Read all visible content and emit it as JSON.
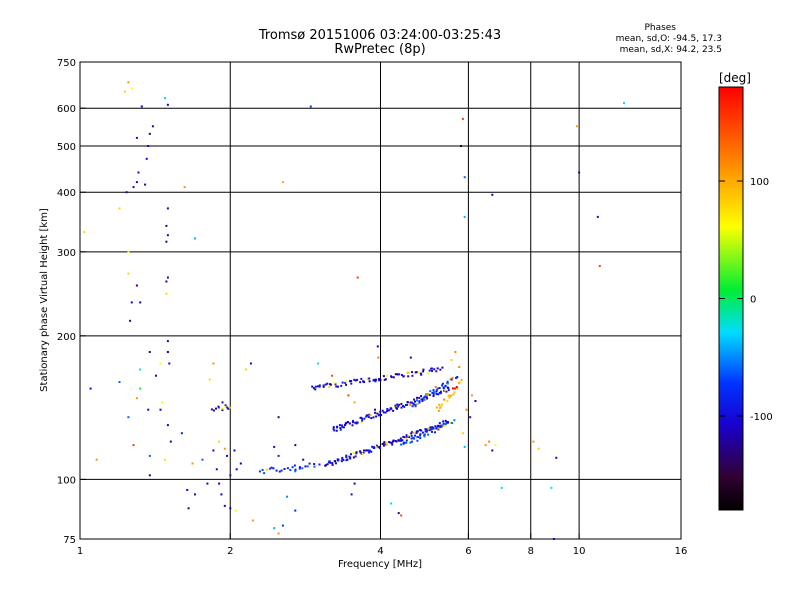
{
  "chart_data": {
    "type": "scatter",
    "title": "Tromsø 20151006 03:24:00-03:25:43",
    "subtitle": "RwPretec (8p)",
    "xlabel": "Frequency [MHz]",
    "ylabel": "Stationary phase Virtual Height [km]",
    "x_scale": "log2",
    "y_scale": "log",
    "xlim": [
      1,
      16
    ],
    "ylim": [
      75,
      750
    ],
    "x_ticks": [
      1,
      2,
      4,
      6,
      8,
      10,
      16
    ],
    "y_ticks": [
      75,
      100,
      200,
      300,
      400,
      500,
      600,
      750
    ],
    "grid": true,
    "colorbar": {
      "title": "[deg]",
      "ticks": [
        100,
        0,
        -100
      ],
      "range": [
        -180,
        180
      ],
      "colormap": "rainbow"
    },
    "annotation": {
      "title": "Phases",
      "line1": "mean, sd,O: -94.5, 17.3",
      "line2": "mean, sd,X:  94.2, 23.5"
    },
    "series": [
      {
        "traces": [
          {
            "from": [
              3.1,
              107
            ],
            "to": [
              5.5,
              132
            ],
            "phase": -100,
            "n": 120
          },
          {
            "from": [
              3.2,
              127
            ],
            "to": [
              5.5,
              155
            ],
            "phase": -100,
            "n": 110
          },
          {
            "from": [
              2.9,
              155
            ],
            "to": [
              5.3,
              170
            ],
            "phase": -105,
            "n": 80
          },
          {
            "from": [
              4.4,
              118
            ],
            "to": [
              5.6,
              132
            ],
            "phase": -70,
            "n": 40
          },
          {
            "from": [
              4.6,
              142
            ],
            "to": [
              5.7,
              165
            ],
            "phase": -70,
            "n": 40
          },
          {
            "from": [
              5.2,
              140
            ],
            "to": [
              5.8,
              160
            ],
            "phase": 95,
            "n": 22
          },
          {
            "from": [
              2.3,
              104
            ],
            "to": [
              3.0,
              107
            ],
            "phase": -80,
            "n": 25
          },
          {
            "from": [
              1.85,
              140
            ],
            "to": [
              2.0,
              142
            ],
            "phase": -105,
            "n": 12
          }
        ],
        "points": [
          [
            1.02,
            330,
            80
          ],
          [
            1.25,
            680,
            110
          ],
          [
            1.27,
            660,
            60
          ],
          [
            1.23,
            650,
            80
          ],
          [
            1.33,
            605,
            -110
          ],
          [
            1.48,
            630,
            -30
          ],
          [
            1.5,
            610,
            -120
          ],
          [
            1.4,
            550,
            -120
          ],
          [
            1.38,
            530,
            -120
          ],
          [
            1.3,
            520,
            -100
          ],
          [
            1.37,
            500,
            -110
          ],
          [
            1.36,
            470,
            -105
          ],
          [
            1.31,
            440,
            -100
          ],
          [
            1.3,
            420,
            -110
          ],
          [
            1.35,
            415,
            -120
          ],
          [
            1.28,
            410,
            -110
          ],
          [
            1.24,
            400,
            -120
          ],
          [
            1.62,
            410,
            110
          ],
          [
            2.55,
            420,
            100
          ],
          [
            1.2,
            370,
            80
          ],
          [
            1.5,
            370,
            -120
          ],
          [
            1.49,
            340,
            -120
          ],
          [
            1.5,
            325,
            -110
          ],
          [
            1.49,
            315,
            -120
          ],
          [
            1.7,
            320,
            -40
          ],
          [
            1.25,
            300,
            60
          ],
          [
            1.5,
            265,
            -110
          ],
          [
            1.49,
            260,
            -120
          ],
          [
            1.25,
            270,
            80
          ],
          [
            1.3,
            255,
            -120
          ],
          [
            1.27,
            235,
            -110
          ],
          [
            1.32,
            235,
            -120
          ],
          [
            1.49,
            245,
            80
          ],
          [
            1.26,
            215,
            -130
          ],
          [
            2.9,
            605,
            -70
          ],
          [
            3.6,
            265,
            150
          ],
          [
            5.85,
            570,
            150
          ],
          [
            5.8,
            500,
            -150
          ],
          [
            5.9,
            430,
            -60
          ],
          [
            6.7,
            395,
            -110
          ],
          [
            5.9,
            355,
            -40
          ],
          [
            9.9,
            550,
            110
          ],
          [
            10.0,
            440,
            -120
          ],
          [
            10.9,
            355,
            -110
          ],
          [
            11,
            280,
            150
          ],
          [
            12.3,
            615,
            -30
          ],
          [
            1.5,
            195,
            -120
          ],
          [
            1.5,
            185,
            -110
          ],
          [
            1.51,
            175,
            -100
          ],
          [
            1.38,
            185,
            -120
          ],
          [
            1.42,
            165,
            -110
          ],
          [
            1.45,
            175,
            60
          ],
          [
            1.32,
            170,
            -20
          ],
          [
            1.32,
            155,
            10
          ],
          [
            1.2,
            160,
            -60
          ],
          [
            1.05,
            155,
            -110
          ],
          [
            1.3,
            148,
            110
          ],
          [
            1.37,
            140,
            -110
          ],
          [
            1.45,
            140,
            -120
          ],
          [
            1.46,
            145,
            60
          ],
          [
            1.25,
            135,
            -60
          ],
          [
            1.5,
            130,
            -110
          ],
          [
            1.52,
            120,
            -120
          ],
          [
            1.6,
            125,
            -80
          ],
          [
            1.28,
            118,
            150
          ],
          [
            1.38,
            112,
            -60
          ],
          [
            1.08,
            110,
            110
          ],
          [
            1.38,
            102,
            -120
          ],
          [
            1.48,
            110,
            70
          ],
          [
            1.68,
            108,
            110
          ],
          [
            1.76,
            110,
            -60
          ],
          [
            1.8,
            98,
            -120
          ],
          [
            1.64,
            95,
            -110
          ],
          [
            1.65,
            87,
            -120
          ],
          [
            1.7,
            93,
            -100
          ],
          [
            1.88,
            105,
            -100
          ],
          [
            1.9,
            98,
            -110
          ],
          [
            1.92,
            93,
            -120
          ],
          [
            1.95,
            88,
            -120
          ],
          [
            2.0,
            87,
            -110
          ],
          [
            2.05,
            86,
            60
          ],
          [
            2.22,
            82,
            110
          ],
          [
            2.45,
            79,
            -40
          ],
          [
            2.5,
            77,
            110
          ],
          [
            2.6,
            92,
            -50
          ],
          [
            2.7,
            86,
            -80
          ],
          [
            2.7,
            104,
            -60
          ],
          [
            2.45,
            117,
            -110
          ],
          [
            2.5,
            112,
            -90
          ],
          [
            2.7,
            118,
            -120
          ],
          [
            2.8,
            110,
            -110
          ],
          [
            2.5,
            135,
            -120
          ],
          [
            2.2,
            175,
            -120
          ],
          [
            2.15,
            170,
            80
          ],
          [
            1.85,
            175,
            110
          ],
          [
            1.82,
            162,
            80
          ],
          [
            1.93,
            145,
            -100
          ],
          [
            1.9,
            120,
            80
          ],
          [
            1.95,
            116,
            110
          ],
          [
            1.97,
            112,
            -100
          ],
          [
            1.85,
            115,
            -110
          ],
          [
            2.04,
            115,
            -120
          ],
          [
            2.06,
            105,
            -110
          ],
          [
            2.1,
            108,
            -120
          ],
          [
            2.0,
            102,
            -100
          ],
          [
            3.5,
            93,
            -100
          ],
          [
            3.55,
            98,
            -120
          ],
          [
            4.35,
            85,
            -120
          ],
          [
            4.4,
            84,
            150
          ],
          [
            4.2,
            89,
            -30
          ],
          [
            3.95,
            190,
            -110
          ],
          [
            3.96,
            180,
            120
          ],
          [
            3.0,
            175,
            -20
          ],
          [
            3.2,
            165,
            150
          ],
          [
            3.45,
            150,
            150
          ],
          [
            3.55,
            145,
            100
          ],
          [
            3.9,
            140,
            -120
          ],
          [
            4.6,
            180,
            -120
          ],
          [
            5.65,
            185,
            120
          ],
          [
            5.55,
            178,
            80
          ],
          [
            5.75,
            172,
            120
          ],
          [
            6.1,
            150,
            110
          ],
          [
            6.2,
            146,
            -110
          ],
          [
            5.95,
            140,
            120
          ],
          [
            6.05,
            135,
            -100
          ],
          [
            5.85,
            125,
            80
          ],
          [
            5.9,
            117,
            -40
          ],
          [
            6.6,
            120,
            120
          ],
          [
            6.8,
            118,
            60
          ],
          [
            6.7,
            115,
            -110
          ],
          [
            8.1,
            120,
            110
          ],
          [
            8.3,
            116,
            80
          ],
          [
            9.0,
            111,
            -110
          ],
          [
            6.5,
            118,
            110
          ],
          [
            7.0,
            96,
            -30
          ],
          [
            8.8,
            96,
            -30
          ],
          [
            8.9,
            75,
            -110
          ],
          [
            2.55,
            80,
            -70
          ]
        ]
      }
    ]
  }
}
